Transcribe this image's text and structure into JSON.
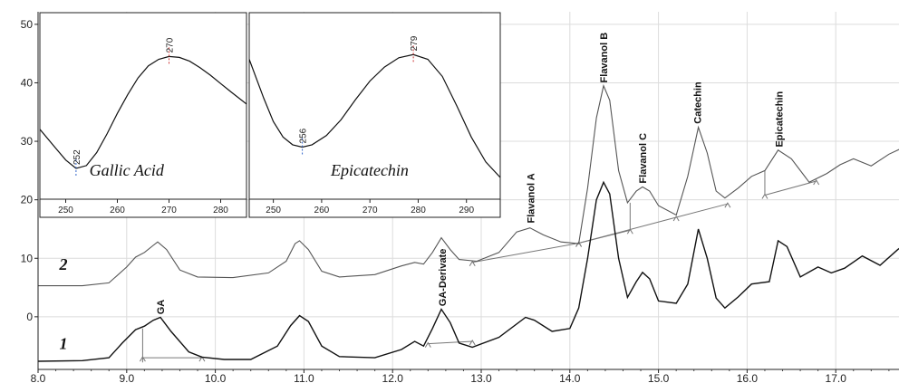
{
  "chart_data": {
    "type": "line",
    "x_unit": "min",
    "xlim": [
      8.0,
      18.0
    ],
    "ylim": [
      -9,
      51
    ],
    "x_ticks": [
      "8.0",
      "9.0",
      "10.0",
      "11.0",
      "12.0",
      "13.0",
      "14.0",
      "15.0",
      "16.0",
      "17.0"
    ],
    "y_ticks": [
      "0",
      "10",
      "20",
      "30",
      "40",
      "50"
    ],
    "series": [
      {
        "name": "1",
        "color": "#111111",
        "points": [
          [
            8.0,
            -7.6
          ],
          [
            8.5,
            -7.5
          ],
          [
            8.8,
            -7.0
          ],
          [
            8.95,
            -4.5
          ],
          [
            9.1,
            -2.2
          ],
          [
            9.2,
            -1.6
          ],
          [
            9.3,
            -0.6
          ],
          [
            9.38,
            -0.1
          ],
          [
            9.5,
            -2.5
          ],
          [
            9.7,
            -6.0
          ],
          [
            9.85,
            -6.9
          ],
          [
            10.1,
            -7.3
          ],
          [
            10.4,
            -7.3
          ],
          [
            10.7,
            -5.0
          ],
          [
            10.85,
            -1.5
          ],
          [
            10.95,
            0.2
          ],
          [
            11.05,
            -0.8
          ],
          [
            11.2,
            -5.0
          ],
          [
            11.4,
            -6.8
          ],
          [
            11.8,
            -7.0
          ],
          [
            12.1,
            -5.6
          ],
          [
            12.25,
            -4.2
          ],
          [
            12.35,
            -5.0
          ],
          [
            12.45,
            -2.0
          ],
          [
            12.55,
            1.3
          ],
          [
            12.65,
            -1.0
          ],
          [
            12.75,
            -4.5
          ],
          [
            12.9,
            -5.2
          ],
          [
            13.2,
            -3.5
          ],
          [
            13.5,
            -0.1
          ],
          [
            13.6,
            -0.6
          ],
          [
            13.8,
            -2.5
          ],
          [
            14.0,
            -2.0
          ],
          [
            14.1,
            1.5
          ],
          [
            14.2,
            10.0
          ],
          [
            14.3,
            20.0
          ],
          [
            14.38,
            23.0
          ],
          [
            14.45,
            21.0
          ],
          [
            14.55,
            10.0
          ],
          [
            14.65,
            3.3
          ],
          [
            14.75,
            6.0
          ],
          [
            14.82,
            7.6
          ],
          [
            14.9,
            6.5
          ],
          [
            15.0,
            2.7
          ],
          [
            15.2,
            2.3
          ],
          [
            15.33,
            5.6
          ],
          [
            15.45,
            15.0
          ],
          [
            15.55,
            10.0
          ],
          [
            15.65,
            3.2
          ],
          [
            15.75,
            1.5
          ],
          [
            15.9,
            3.4
          ],
          [
            16.05,
            5.6
          ],
          [
            16.25,
            6.0
          ],
          [
            16.35,
            13.0
          ],
          [
            16.45,
            12.0
          ],
          [
            16.6,
            6.8
          ],
          [
            16.8,
            8.5
          ],
          [
            16.95,
            7.5
          ],
          [
            17.1,
            8.3
          ],
          [
            17.3,
            10.4
          ],
          [
            17.5,
            8.8
          ],
          [
            17.7,
            11.5
          ],
          [
            17.9,
            13.8
          ],
          [
            18.0,
            14.0
          ]
        ]
      },
      {
        "name": "2",
        "color": "#555555",
        "points": [
          [
            8.0,
            5.3
          ],
          [
            8.5,
            5.3
          ],
          [
            8.8,
            5.8
          ],
          [
            9.0,
            8.5
          ],
          [
            9.1,
            10.2
          ],
          [
            9.2,
            11.0
          ],
          [
            9.3,
            12.2
          ],
          [
            9.35,
            12.8
          ],
          [
            9.45,
            11.5
          ],
          [
            9.6,
            8.0
          ],
          [
            9.8,
            6.8
          ],
          [
            10.2,
            6.7
          ],
          [
            10.6,
            7.5
          ],
          [
            10.8,
            9.5
          ],
          [
            10.9,
            12.5
          ],
          [
            10.95,
            13.0
          ],
          [
            11.05,
            11.5
          ],
          [
            11.2,
            7.8
          ],
          [
            11.4,
            6.8
          ],
          [
            11.8,
            7.2
          ],
          [
            12.1,
            8.7
          ],
          [
            12.25,
            9.3
          ],
          [
            12.35,
            9.0
          ],
          [
            12.45,
            11.0
          ],
          [
            12.55,
            13.5
          ],
          [
            12.65,
            11.5
          ],
          [
            12.75,
            9.8
          ],
          [
            12.95,
            9.5
          ],
          [
            13.2,
            11.0
          ],
          [
            13.4,
            14.5
          ],
          [
            13.55,
            15.2
          ],
          [
            13.7,
            14.0
          ],
          [
            13.9,
            12.8
          ],
          [
            14.1,
            12.5
          ],
          [
            14.2,
            22.0
          ],
          [
            14.3,
            34.0
          ],
          [
            14.38,
            39.5
          ],
          [
            14.45,
            37.0
          ],
          [
            14.55,
            25.0
          ],
          [
            14.65,
            19.5
          ],
          [
            14.75,
            21.5
          ],
          [
            14.82,
            22.2
          ],
          [
            14.9,
            21.5
          ],
          [
            15.0,
            19.0
          ],
          [
            15.2,
            17.4
          ],
          [
            15.33,
            24.0
          ],
          [
            15.45,
            32.4
          ],
          [
            15.55,
            28.0
          ],
          [
            15.65,
            21.5
          ],
          [
            15.75,
            20.3
          ],
          [
            15.9,
            22.0
          ],
          [
            16.05,
            24.0
          ],
          [
            16.2,
            25.0
          ],
          [
            16.35,
            28.5
          ],
          [
            16.5,
            27.0
          ],
          [
            16.7,
            23.0
          ],
          [
            16.9,
            24.5
          ],
          [
            17.05,
            26.0
          ],
          [
            17.2,
            27.0
          ],
          [
            17.4,
            25.8
          ],
          [
            17.6,
            27.8
          ],
          [
            17.8,
            29.2
          ],
          [
            18.0,
            29.5
          ]
        ]
      }
    ],
    "trace_labels": [
      "1",
      "2"
    ],
    "peak_labels": [
      "GA",
      "GA-Derivate",
      "Flavanol A",
      "Flavanol B",
      "Flavanol C",
      "Catechin",
      "Epicatechin"
    ],
    "insets": [
      {
        "name": "Gallic Acid",
        "x_ticks": [
          "250",
          "260",
          "270",
          "280"
        ],
        "markers": [
          "252",
          "270"
        ],
        "curve": [
          [
            245,
            37.5
          ],
          [
            248,
            35.5
          ],
          [
            250,
            34.2
          ],
          [
            252,
            33.3
          ],
          [
            254,
            33.6
          ],
          [
            256,
            35.0
          ],
          [
            258,
            37.0
          ],
          [
            260,
            39.2
          ],
          [
            262,
            41.2
          ],
          [
            264,
            43.0
          ],
          [
            266,
            44.3
          ],
          [
            268,
            45.0
          ],
          [
            270,
            45.3
          ],
          [
            272,
            45.2
          ],
          [
            274,
            44.8
          ],
          [
            276,
            44.1
          ],
          [
            278,
            43.3
          ],
          [
            280,
            42.4
          ],
          [
            282,
            41.5
          ],
          [
            285,
            40.2
          ]
        ]
      },
      {
        "name": "Epicatechin",
        "x_ticks": [
          "250",
          "260",
          "270",
          "280",
          "290"
        ],
        "markers": [
          "256",
          "279"
        ],
        "curve": [
          [
            245,
            46.0
          ],
          [
            248,
            41.0
          ],
          [
            250,
            38.0
          ],
          [
            252,
            36.0
          ],
          [
            254,
            35.0
          ],
          [
            256,
            34.7
          ],
          [
            258,
            35.0
          ],
          [
            261,
            36.2
          ],
          [
            264,
            38.2
          ],
          [
            267,
            40.8
          ],
          [
            270,
            43.2
          ],
          [
            273,
            45.0
          ],
          [
            276,
            46.2
          ],
          [
            279,
            46.6
          ],
          [
            282,
            46.0
          ],
          [
            285,
            43.8
          ],
          [
            288,
            40.0
          ],
          [
            291,
            36.0
          ],
          [
            294,
            32.8
          ],
          [
            297,
            30.8
          ]
        ]
      }
    ],
    "integration_baselines": [
      {
        "trace": "1",
        "x": [
          9.18,
          9.85
        ],
        "y": [
          -7.0,
          -7.0
        ]
      },
      {
        "trace": "1",
        "x": [
          12.4,
          12.9
        ],
        "y": [
          -4.6,
          -4.2
        ]
      },
      {
        "trace": "2",
        "x": [
          12.9,
          14.1,
          15.2,
          15.78
        ],
        "y": [
          9.3,
          12.6,
          17.0,
          19.3
        ]
      },
      {
        "trace": "2",
        "x": [
          14.1,
          14.68
        ],
        "y": [
          12.6,
          14.8
        ]
      },
      {
        "trace": "2",
        "x": [
          16.2,
          16.78
        ],
        "y": [
          20.8,
          23.2
        ]
      }
    ],
    "split_lines": [
      {
        "x": 9.18,
        "y": [
          -7.8,
          -2.0
        ]
      },
      {
        "x": 14.68,
        "y": [
          14.8,
          19.5
        ]
      },
      {
        "x": 16.2,
        "y": [
          20.8,
          25.0
        ]
      }
    ],
    "colors": {
      "trace1": "#111111",
      "trace2": "#555555",
      "min_marker": "#3366cc",
      "max_marker": "#cc3333"
    }
  }
}
